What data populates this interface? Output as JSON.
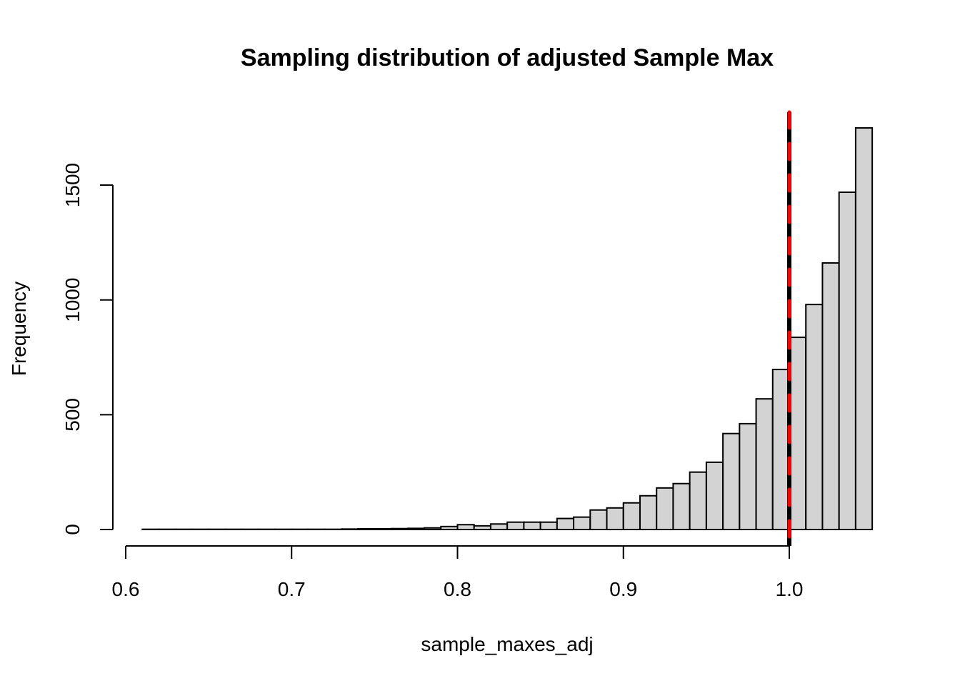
{
  "chart_data": {
    "type": "bar",
    "subtype": "histogram",
    "title": "Sampling distribution of adjusted Sample Max",
    "xlabel": "sample_maxes_adj",
    "ylabel": "Frequency",
    "xlim": [
      0.6,
      1.05
    ],
    "ylim": [
      0,
      1750
    ],
    "x_ticks": [
      "0.6",
      "0.7",
      "0.8",
      "0.9",
      "1.0"
    ],
    "x_tick_values": [
      0.6,
      0.7,
      0.8,
      0.9,
      1.0
    ],
    "y_ticks": [
      "0",
      "500",
      "1000",
      "1500"
    ],
    "y_tick_values": [
      0,
      500,
      1000,
      1500
    ],
    "bin_start": 0.61,
    "bin_width": 0.01,
    "values": [
      1,
      1,
      1,
      1,
      1,
      1,
      1,
      1,
      1,
      1,
      1,
      1,
      2,
      3,
      3,
      4,
      5,
      7,
      13,
      21,
      16,
      24,
      32,
      32,
      32,
      48,
      54,
      85,
      94,
      116,
      147,
      181,
      200,
      250,
      293,
      418,
      461,
      569,
      697,
      837,
      980,
      1161,
      1469,
      1749
    ],
    "bar_fill": "#d3d3d3",
    "reference_lines": [
      {
        "x": 1.0,
        "color": "#000000",
        "style": "solid"
      },
      {
        "x": 1.0,
        "color": "#ff0000",
        "style": "dashed"
      }
    ],
    "grid": false
  }
}
